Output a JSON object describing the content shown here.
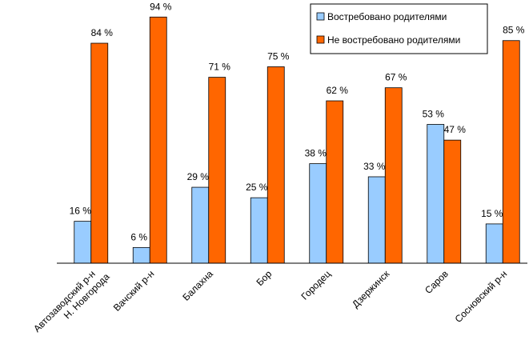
{
  "chart_data": {
    "type": "bar",
    "categories": [
      "Автозаводский р-н\nН. Новгорода",
      "Вачский р-н",
      "Балахна",
      "Бор",
      "Городец",
      "Дзержинск",
      "Саров",
      "Сосновский р-н"
    ],
    "series": [
      {
        "name": "Востребовано родителями",
        "values": [
          16,
          6,
          29,
          25,
          38,
          33,
          53,
          15
        ],
        "labels": [
          "16 %",
          "6 %",
          "29 %",
          "25 %",
          "38 %",
          "33 %",
          "53 %",
          "15 %"
        ],
        "color": "#99CCFF"
      },
      {
        "name": "Не востребовано родителями",
        "values": [
          84,
          94,
          71,
          75,
          62,
          67,
          47,
          85
        ],
        "labels": [
          "84 %",
          "94 %",
          "71 %",
          "75 %",
          "62 %",
          "67 %",
          "47 %",
          "85 %"
        ],
        "color": "#FF6600"
      }
    ],
    "ylim": [
      0,
      100
    ],
    "grid": false,
    "legend": "top-right",
    "title": "",
    "xlabel": "",
    "ylabel": ""
  }
}
